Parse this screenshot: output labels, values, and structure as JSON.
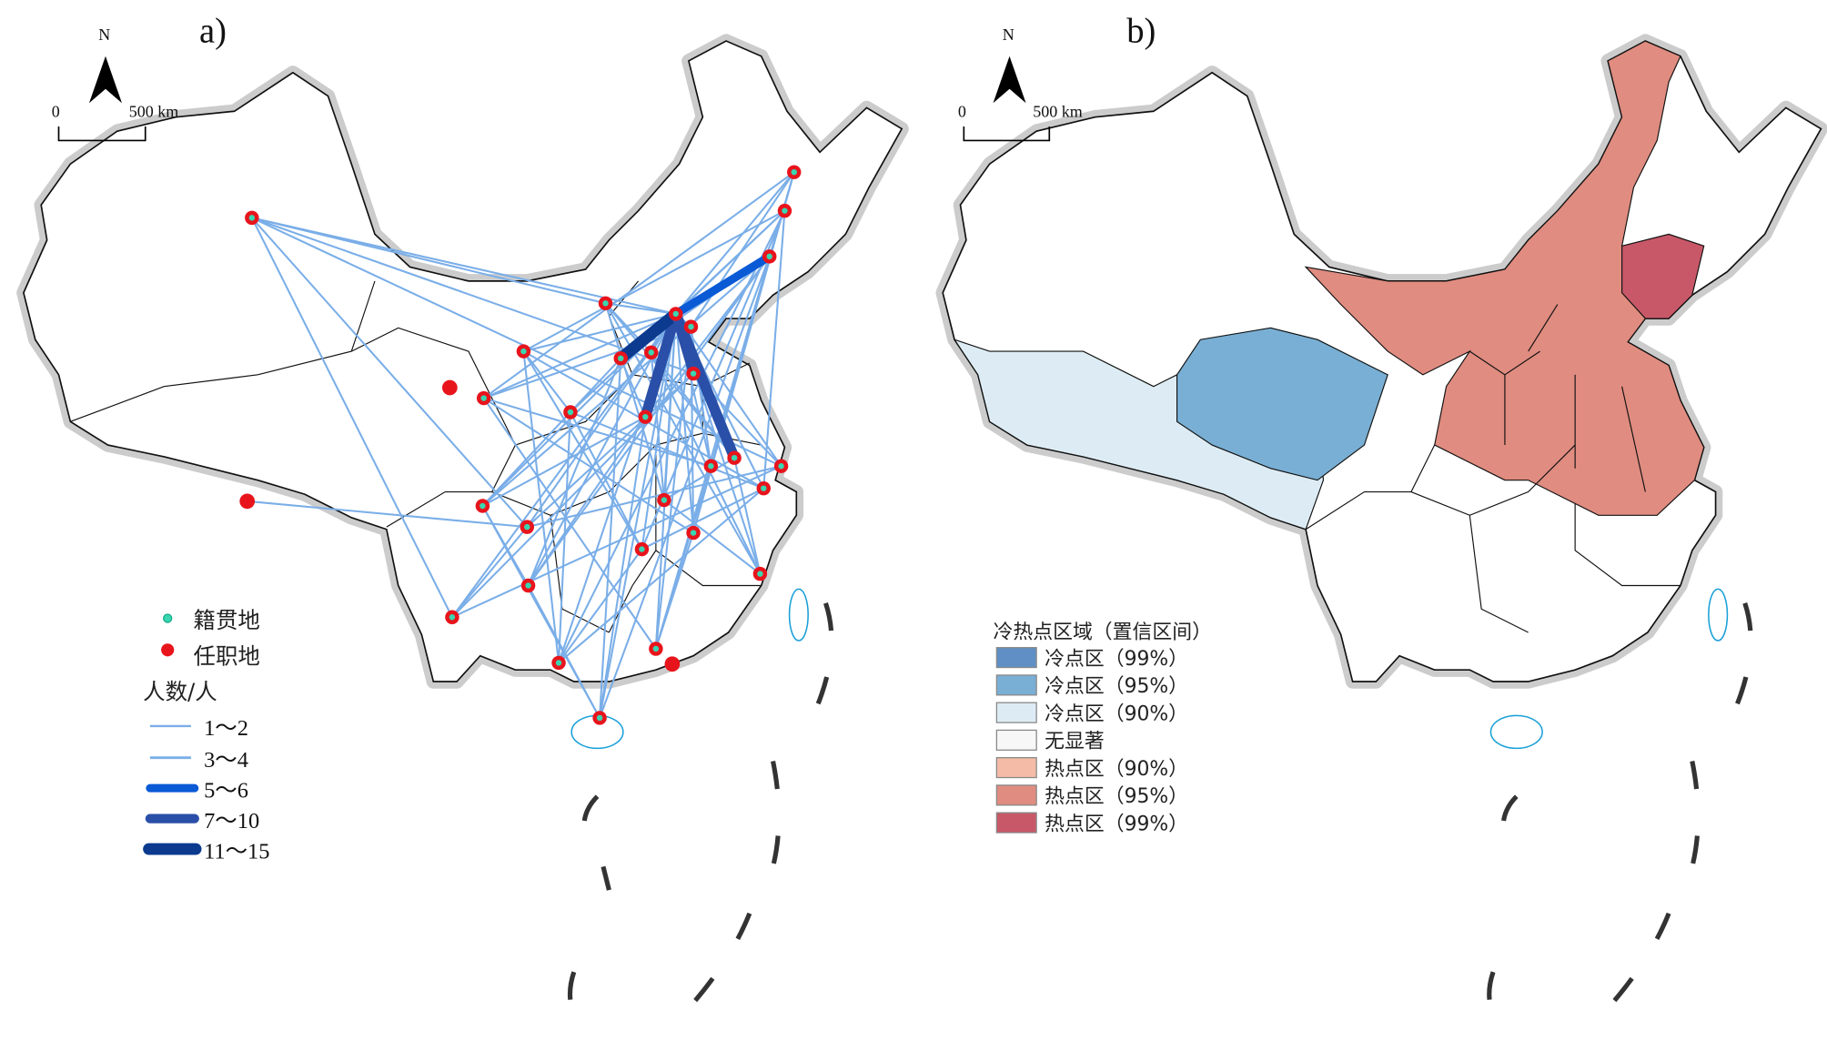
{
  "panel_a": {
    "label": "a)",
    "north": "N",
    "scale_zero": "0",
    "scale_end": "500 km",
    "legend": {
      "points": [
        {
          "label": "籍贯地",
          "color": "#3ad6b0"
        },
        {
          "label": "任职地",
          "color": "#e8141c"
        }
      ],
      "count_title": "人数/人",
      "lines": [
        {
          "label": "1～2",
          "color": "#7aaee8"
        },
        {
          "label": "3～4",
          "color": "#7aaee8"
        },
        {
          "label": "5～6",
          "color": "#0a5ad6"
        },
        {
          "label": "7～10",
          "color": "#2a4fa8"
        },
        {
          "label": "11～15",
          "color": "#0b3a8f"
        }
      ]
    }
  },
  "panel_b": {
    "label": "b)",
    "north": "N",
    "scale_zero": "0",
    "scale_end": "500 km",
    "legend": {
      "title": "冷热点区域（置信区间）",
      "items": [
        {
          "label": "冷点区（99%）",
          "color": "#5f8fc4"
        },
        {
          "label": "冷点区（95%）",
          "color": "#79afd4"
        },
        {
          "label": "冷点区（90%）",
          "color": "#ddecf4"
        },
        {
          "label": "无显著",
          "color": "#f7f7f7"
        },
        {
          "label": "热点区（90%）",
          "color": "#f4bca6"
        },
        {
          "label": "热点区（95%）",
          "color": "#e08c80"
        },
        {
          "label": "热点区（99%）",
          "color": "#c85868"
        }
      ]
    }
  }
}
